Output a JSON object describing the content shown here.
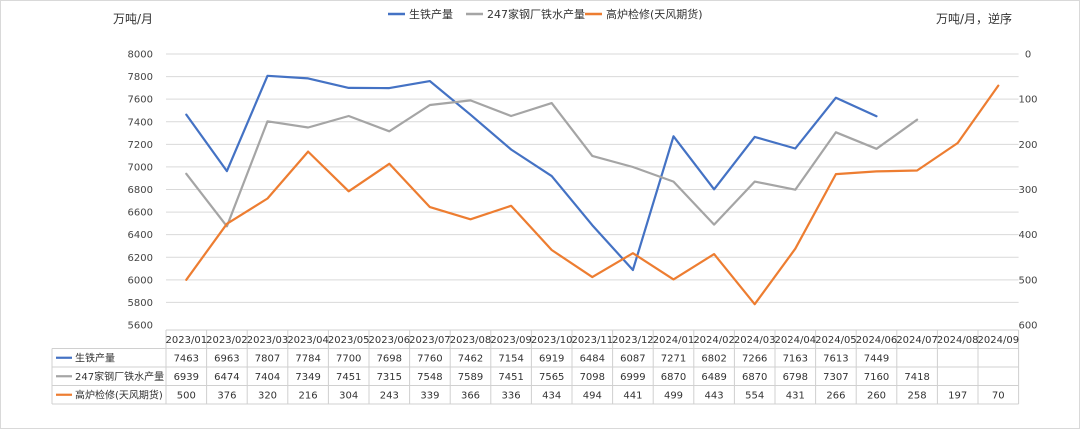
{
  "chart_data": {
    "type": "line",
    "left_unit": "万吨/月",
    "right_unit": "万吨/月，逆序",
    "left_axis": {
      "min": 5600,
      "max": 8000,
      "step": 200
    },
    "right_axis": {
      "min": 0,
      "max": 600,
      "step": 100,
      "reversed": true
    },
    "categories": [
      "2023/01",
      "2023/02",
      "2023/03",
      "2023/04",
      "2023/05",
      "2023/06",
      "2023/07",
      "2023/08",
      "2023/09",
      "2023/10",
      "2023/11",
      "2023/12",
      "2024/01",
      "2024/02",
      "2024/03",
      "2024/04",
      "2024/05",
      "2024/06",
      "2024/07",
      "2024/08",
      "2024/09"
    ],
    "legend_position": "top",
    "grid": true,
    "series": [
      {
        "name": "生铁产量",
        "axis": "left",
        "color": "#4472c4",
        "values": [
          7463,
          6963,
          7807,
          7784,
          7700,
          7698,
          7760,
          7462,
          7154,
          6919,
          6484,
          6087,
          7271,
          6802,
          7266,
          7163,
          7613,
          7449,
          null,
          null,
          null
        ]
      },
      {
        "name": "247家钢厂铁水产量",
        "axis": "left",
        "color": "#a5a5a5",
        "values": [
          6939,
          6474,
          7404,
          7349,
          7451,
          7315,
          7548,
          7589,
          7451,
          7565,
          7098,
          6999,
          6870,
          6489,
          6870,
          6798,
          7307,
          7160,
          7418,
          null,
          null
        ]
      },
      {
        "name": "高炉检修(天风期货)",
        "axis": "right",
        "color": "#ed7d31",
        "values": [
          500,
          376,
          320,
          216,
          304,
          243,
          339,
          366,
          336,
          434,
          494,
          441,
          499,
          443,
          554,
          431,
          266,
          260,
          258,
          197,
          70
        ]
      }
    ]
  }
}
